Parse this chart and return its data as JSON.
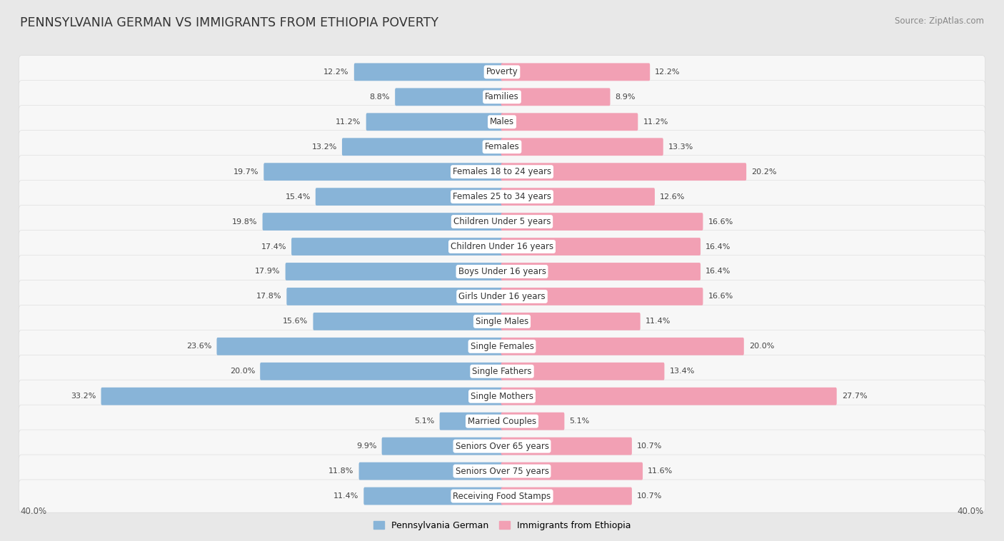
{
  "title": "PENNSYLVANIA GERMAN VS IMMIGRANTS FROM ETHIOPIA POVERTY",
  "source": "Source: ZipAtlas.com",
  "categories": [
    "Poverty",
    "Families",
    "Males",
    "Females",
    "Females 18 to 24 years",
    "Females 25 to 34 years",
    "Children Under 5 years",
    "Children Under 16 years",
    "Boys Under 16 years",
    "Girls Under 16 years",
    "Single Males",
    "Single Females",
    "Single Fathers",
    "Single Mothers",
    "Married Couples",
    "Seniors Over 65 years",
    "Seniors Over 75 years",
    "Receiving Food Stamps"
  ],
  "left_values": [
    12.2,
    8.8,
    11.2,
    13.2,
    19.7,
    15.4,
    19.8,
    17.4,
    17.9,
    17.8,
    15.6,
    23.6,
    20.0,
    33.2,
    5.1,
    9.9,
    11.8,
    11.4
  ],
  "right_values": [
    12.2,
    8.9,
    11.2,
    13.3,
    20.2,
    12.6,
    16.6,
    16.4,
    16.4,
    16.6,
    11.4,
    20.0,
    13.4,
    27.7,
    5.1,
    10.7,
    11.6,
    10.7
  ],
  "left_color": "#88b4d8",
  "right_color": "#f2a0b4",
  "background_color": "#e8e8e8",
  "row_bg_color": "#f7f7f7",
  "max_value": 40.0,
  "legend_left": "Pennsylvania German",
  "legend_right": "Immigrants from Ethiopia",
  "title_fontsize": 12.5,
  "source_fontsize": 8.5,
  "label_fontsize": 8.5,
  "value_fontsize": 8.0,
  "axis_label_fontsize": 8.5
}
